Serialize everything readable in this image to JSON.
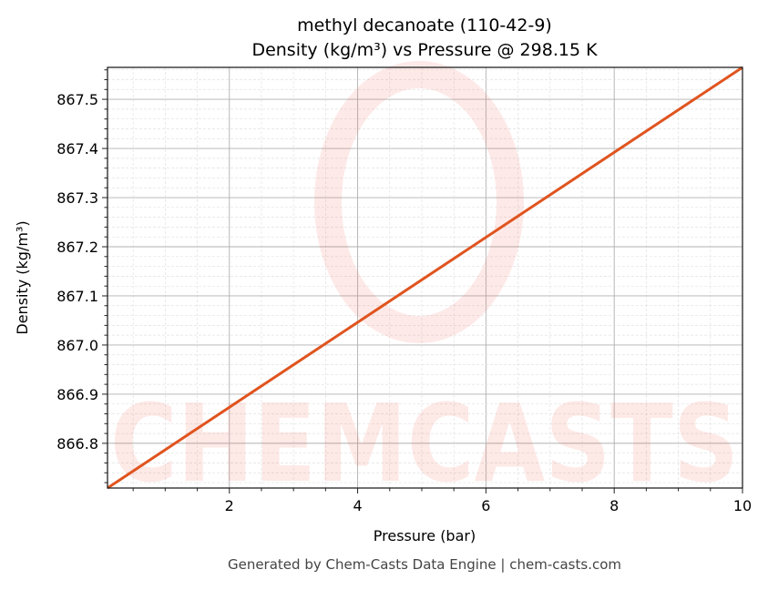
{
  "chart_data": {
    "type": "line",
    "title": "methyl decanoate (110-42-9)",
    "subtitle": "Density (kg/m³) vs Pressure @ 298.15 K",
    "xlabel": "Pressure (bar)",
    "ylabel": "Density (kg/m³)",
    "xlim": [
      0.1,
      10
    ],
    "ylim": [
      866.709,
      867.565
    ],
    "x_ticks": [
      2,
      4,
      6,
      8,
      10
    ],
    "x_tick_labels": [
      "2",
      "4",
      "6",
      "8",
      "10"
    ],
    "y_ticks": [
      866.8,
      866.9,
      867.0,
      867.1,
      867.2,
      867.3,
      867.4,
      867.5
    ],
    "y_tick_labels": [
      "866.8",
      "866.9",
      "867.0",
      "867.1",
      "867.2",
      "867.3",
      "867.4",
      "867.5"
    ],
    "grid": true,
    "minor_grid": true,
    "series": [
      {
        "x": [
          0.1,
          10
        ],
        "y": [
          866.709,
          867.565
        ],
        "color": "#e0541f"
      }
    ]
  },
  "watermark": "CHEMCASTS",
  "footer": "Generated by Chem-Casts Data Engine | chem-casts.com"
}
